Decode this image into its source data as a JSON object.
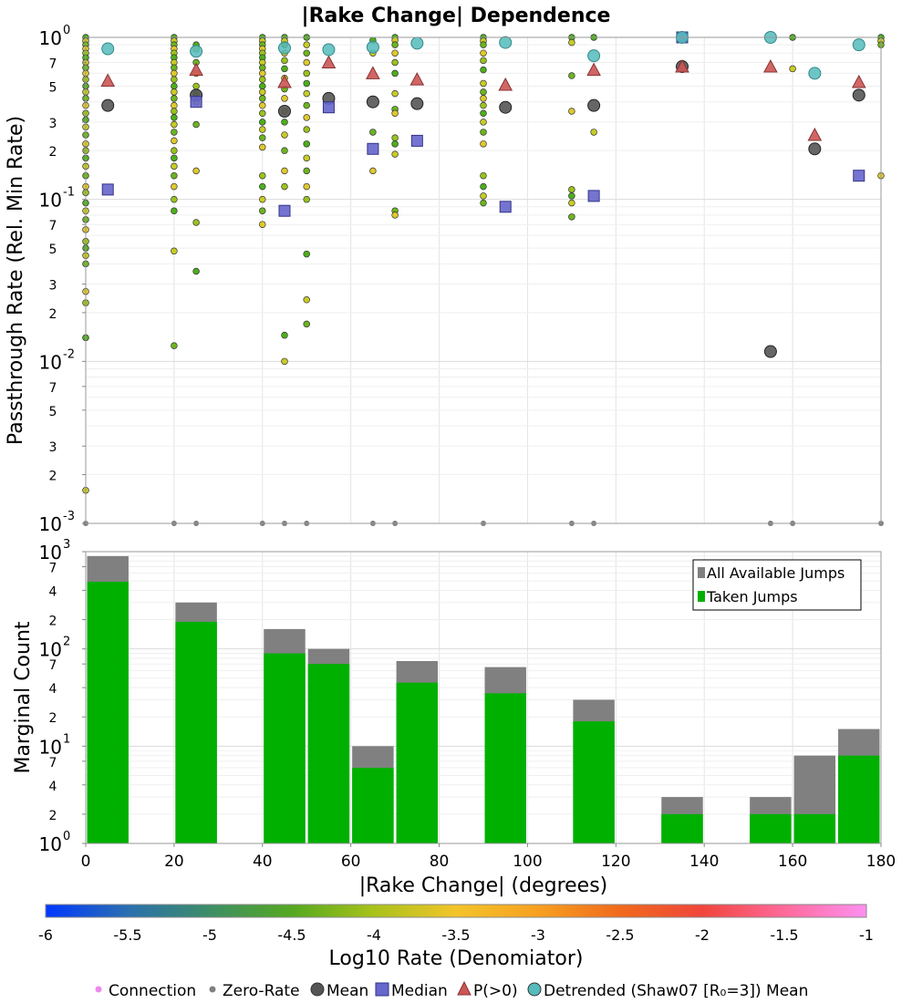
{
  "chart_data": [
    {
      "type": "scatter",
      "title": "|Rake Change| Dependence",
      "xlabel": "",
      "ylabel": "Passthrough Rate (Rel. Min Rate)",
      "xlim": [
        0,
        180
      ],
      "ylim": [
        0.001,
        1
      ],
      "yscale": "log",
      "grid": true,
      "y_ticks": [
        {
          "v": 1,
          "base": "10",
          "exp": "0",
          "major": true
        },
        {
          "v": 0.7,
          "text": "7"
        },
        {
          "v": 0.5,
          "text": "5"
        },
        {
          "v": 0.3,
          "text": "3"
        },
        {
          "v": 0.2,
          "text": "2"
        },
        {
          "v": 0.1,
          "base": "10",
          "exp": "-1",
          "major": true
        },
        {
          "v": 0.07,
          "text": "7"
        },
        {
          "v": 0.05,
          "text": "5"
        },
        {
          "v": 0.03,
          "text": "3"
        },
        {
          "v": 0.02,
          "text": "2"
        },
        {
          "v": 0.01,
          "base": "10",
          "exp": "-2",
          "major": true
        },
        {
          "v": 0.007,
          "text": "7"
        },
        {
          "v": 0.005,
          "text": "5"
        },
        {
          "v": 0.003,
          "text": "3"
        },
        {
          "v": 0.002,
          "text": "2"
        },
        {
          "v": 0.001,
          "base": "10",
          "exp": "-3",
          "major": true
        }
      ],
      "connection_colors": [
        "#4caf1a",
        "#6bb51e",
        "#9ac31c",
        "#c8cc24",
        "#e0c92c"
      ],
      "connections": [
        {
          "x": 0,
          "y": [
            1.0,
            0.95,
            0.9,
            0.85,
            0.8,
            0.75,
            0.7,
            0.65,
            0.6,
            0.55,
            0.5,
            0.46,
            0.42,
            0.38,
            0.34,
            0.31,
            0.28,
            0.25,
            0.22,
            0.2,
            0.18,
            0.16,
            0.14,
            0.12,
            0.11,
            0.095,
            0.085,
            0.075,
            0.065,
            0.055,
            0.05,
            0.045,
            0.04,
            0.027,
            0.023,
            0.014,
            0.0016
          ]
        },
        {
          "x": 20,
          "y": [
            1.0,
            0.95,
            0.9,
            0.85,
            0.8,
            0.75,
            0.7,
            0.65,
            0.6,
            0.55,
            0.5,
            0.46,
            0.42,
            0.38,
            0.35,
            0.32,
            0.29,
            0.26,
            0.23,
            0.2,
            0.18,
            0.16,
            0.14,
            0.12,
            0.1,
            0.085,
            0.048,
            0.0125
          ]
        },
        {
          "x": 25,
          "y": [
            0.9,
            0.85,
            0.7,
            0.6,
            0.5,
            0.45,
            0.4,
            0.29,
            0.15,
            0.072,
            0.036
          ]
        },
        {
          "x": 40,
          "y": [
            1.0,
            0.95,
            0.9,
            0.85,
            0.8,
            0.75,
            0.7,
            0.65,
            0.6,
            0.55,
            0.5,
            0.46,
            0.42,
            0.38,
            0.34,
            0.3,
            0.27,
            0.24,
            0.21,
            0.14,
            0.12,
            0.1,
            0.085,
            0.07
          ]
        },
        {
          "x": 45,
          "y": [
            1.0,
            0.95,
            0.9,
            0.8,
            0.72,
            0.64,
            0.56,
            0.48,
            0.42,
            0.35,
            0.3,
            0.25,
            0.2,
            0.15,
            0.12,
            0.0145,
            0.01
          ]
        },
        {
          "x": 50,
          "y": [
            1.0,
            0.9,
            0.8,
            0.7,
            0.6,
            0.52,
            0.45,
            0.38,
            0.32,
            0.27,
            0.22,
            0.18,
            0.15,
            0.12,
            0.1,
            0.046,
            0.024,
            0.017
          ]
        },
        {
          "x": 65,
          "y": [
            0.96,
            0.8,
            0.26,
            0.15
          ]
        },
        {
          "x": 70,
          "y": [
            1.0,
            0.96,
            0.9,
            0.8,
            0.7,
            0.6,
            0.45,
            0.36,
            0.34,
            0.24,
            0.22,
            0.19,
            0.085,
            0.08
          ]
        },
        {
          "x": 90,
          "y": [
            1.0,
            0.95,
            0.9,
            0.8,
            0.72,
            0.63,
            0.52,
            0.46,
            0.42,
            0.38,
            0.34,
            0.3,
            0.26,
            0.22,
            0.14,
            0.12,
            0.105,
            0.095
          ]
        },
        {
          "x": 110,
          "y": [
            1.0,
            0.93,
            0.58,
            0.35,
            0.115,
            0.105,
            0.095,
            0.078
          ]
        },
        {
          "x": 115,
          "y": [
            1.0,
            0.26
          ]
        },
        {
          "x": 160,
          "y": [
            1.0,
            0.64
          ]
        },
        {
          "x": 180,
          "y": [
            1.0,
            0.95,
            0.9,
            0.14
          ]
        }
      ],
      "zero_rate": [
        0,
        20,
        25,
        40,
        45,
        50,
        65,
        70,
        90,
        110,
        115,
        155,
        160,
        180
      ],
      "mean": [
        {
          "x": 5,
          "y": 0.38
        },
        {
          "x": 25,
          "y": 0.44
        },
        {
          "x": 45,
          "y": 0.35
        },
        {
          "x": 55,
          "y": 0.42
        },
        {
          "x": 65,
          "y": 0.4
        },
        {
          "x": 75,
          "y": 0.39
        },
        {
          "x": 95,
          "y": 0.37
        },
        {
          "x": 115,
          "y": 0.38
        },
        {
          "x": 135,
          "y": 0.66
        },
        {
          "x": 155,
          "y": 0.0115
        },
        {
          "x": 165,
          "y": 0.205
        },
        {
          "x": 175,
          "y": 0.44
        }
      ],
      "median": [
        {
          "x": 5,
          "y": 0.115
        },
        {
          "x": 25,
          "y": 0.4
        },
        {
          "x": 45,
          "y": 0.085
        },
        {
          "x": 55,
          "y": 0.37
        },
        {
          "x": 65,
          "y": 0.205
        },
        {
          "x": 75,
          "y": 0.23
        },
        {
          "x": 95,
          "y": 0.09
        },
        {
          "x": 115,
          "y": 0.105
        },
        {
          "x": 135,
          "y": 1.0
        },
        {
          "x": 175,
          "y": 0.14
        }
      ],
      "p_gt_0": [
        {
          "x": 5,
          "y": 0.54
        },
        {
          "x": 25,
          "y": 0.63
        },
        {
          "x": 45,
          "y": 0.53
        },
        {
          "x": 55,
          "y": 0.7
        },
        {
          "x": 65,
          "y": 0.6
        },
        {
          "x": 75,
          "y": 0.55
        },
        {
          "x": 95,
          "y": 0.51
        },
        {
          "x": 115,
          "y": 0.63
        },
        {
          "x": 135,
          "y": 0.66
        },
        {
          "x": 155,
          "y": 0.66
        },
        {
          "x": 165,
          "y": 0.25
        },
        {
          "x": 175,
          "y": 0.53
        }
      ],
      "detrended_mean": [
        {
          "x": 5,
          "y": 0.85
        },
        {
          "x": 25,
          "y": 0.82
        },
        {
          "x": 45,
          "y": 0.86
        },
        {
          "x": 55,
          "y": 0.84
        },
        {
          "x": 65,
          "y": 0.87
        },
        {
          "x": 75,
          "y": 0.92
        },
        {
          "x": 95,
          "y": 0.93
        },
        {
          "x": 115,
          "y": 0.77
        },
        {
          "x": 135,
          "y": 1.0
        },
        {
          "x": 155,
          "y": 1.0
        },
        {
          "x": 165,
          "y": 0.6
        },
        {
          "x": 175,
          "y": 0.9
        }
      ]
    },
    {
      "type": "bar",
      "xlabel": "|Rake Change| (degrees)",
      "ylabel": "Marginal Count",
      "xlim": [
        0,
        180
      ],
      "ylim": [
        1,
        1000
      ],
      "yscale": "log",
      "grid": true,
      "x_ticks": [
        "0",
        "20",
        "40",
        "60",
        "80",
        "100",
        "120",
        "140",
        "160",
        "180"
      ],
      "y_ticks": [
        {
          "v": 1000,
          "base": "10",
          "exp": "3",
          "major": true
        },
        {
          "v": 700,
          "text": "7"
        },
        {
          "v": 400,
          "text": "4"
        },
        {
          "v": 200,
          "text": "2"
        },
        {
          "v": 100,
          "base": "10",
          "exp": "2",
          "major": true
        },
        {
          "v": 70,
          "text": "7"
        },
        {
          "v": 40,
          "text": "4"
        },
        {
          "v": 20,
          "text": "2"
        },
        {
          "v": 10,
          "base": "10",
          "exp": "1",
          "major": true
        },
        {
          "v": 7,
          "text": "7"
        },
        {
          "v": 4,
          "text": "4"
        },
        {
          "v": 2,
          "text": "2"
        },
        {
          "v": 1,
          "base": "10",
          "exp": "0",
          "major": true
        }
      ],
      "bin_width": 10,
      "bins": [
        0,
        20,
        40,
        50,
        60,
        70,
        90,
        110,
        130,
        150,
        160,
        170
      ],
      "series": [
        {
          "name": "All Available Jumps",
          "color": "#808080",
          "values": [
            900,
            300,
            160,
            100,
            10,
            75,
            65,
            30,
            3,
            3,
            8,
            15
          ]
        },
        {
          "name": "Taken Jumps",
          "color": "#00b000",
          "values": [
            490,
            190,
            90,
            70,
            6,
            45,
            35,
            18,
            2,
            2,
            2,
            8
          ]
        }
      ],
      "legend_position": "top-right"
    }
  ],
  "colorbar": {
    "label": "Log10 Rate (Denomiator)",
    "ticks": [
      "-6",
      "-5.5",
      "-5",
      "-4.5",
      "-4",
      "-3.5",
      "-3",
      "-2.5",
      "-2",
      "-1.5",
      "-1"
    ],
    "range": [
      -6,
      -1
    ],
    "colors": [
      "#0038ff",
      "#2a6fb0",
      "#3d8e66",
      "#55a820",
      "#a8c21a",
      "#f3c42a",
      "#f7a020",
      "#f06a1c",
      "#f0453c",
      "#ff6a9a",
      "#ff90f0"
    ]
  },
  "legend": [
    {
      "label": "Connection",
      "symbol": "small-dot",
      "color": "#ee88ee"
    },
    {
      "label": "Zero-Rate",
      "symbol": "small-dot",
      "color": "#808080"
    },
    {
      "label": "Mean",
      "symbol": "circle",
      "color": "#555555"
    },
    {
      "label": "Median",
      "symbol": "square",
      "color": "#6666cc"
    },
    {
      "label": "P(>0)",
      "symbol": "triangle",
      "color": "#cc5555"
    },
    {
      "label": "Detrended (Shaw07 [R₀=3]) Mean",
      "symbol": "circle",
      "color": "#55bbbb"
    }
  ]
}
